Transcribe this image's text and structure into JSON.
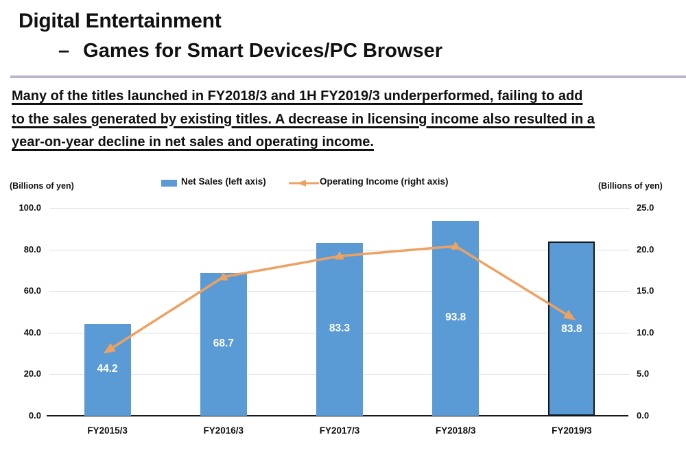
{
  "header": {
    "title_line1": "Digital Entertainment",
    "title_line2_dash": "–",
    "title_line2": "Games for Smart Devices/PC Browser"
  },
  "summary": {
    "lines": [
      "Many of the titles launched in FY2018/3 and 1H FY2019/3 underperformed, failing to add",
      "to the sales generated by existing titles. A decrease in licensing income also resulted in a",
      "year-on-year decline in net sales and operating income."
    ]
  },
  "chart_data": {
    "type": "combo-bar-line",
    "categories": [
      "FY2015/3",
      "FY2016/3",
      "FY2017/3",
      "FY2018/3",
      "FY2019/3"
    ],
    "series": [
      {
        "name": "Net Sales (left axis)",
        "type": "bar",
        "axis": "left",
        "color": "#5B9BD5",
        "values": [
          44.2,
          68.7,
          83.3,
          93.8,
          83.8
        ],
        "data_labels": [
          "44.2",
          "68.7",
          "83.3",
          "93.8",
          "83.8"
        ],
        "last_bar_outlined": true
      },
      {
        "name": "Operating Income (right axis)",
        "type": "line",
        "axis": "right",
        "color": "#EDA262",
        "values": [
          7.8,
          16.7,
          19.2,
          20.4,
          11.8
        ]
      }
    ],
    "left_axis": {
      "title": "(Billions of yen)",
      "min": 0,
      "max": 100,
      "ticks": [
        "100.0",
        "80.0",
        "60.0",
        "40.0",
        "20.0",
        "0.0"
      ]
    },
    "right_axis": {
      "title": "(Billions of yen)",
      "min": 0,
      "max": 25,
      "ticks": [
        "25.0",
        "20.0",
        "15.0",
        "10.0",
        "5.0",
        "0.0"
      ]
    },
    "grid": true,
    "legend_position": "top-center"
  },
  "colors": {
    "bar_blue": "#5B9BD5",
    "line_orange": "#EDA262",
    "separator_lavender": "#bdb6cb",
    "gridline_gray": "#dcdcdc",
    "outline_black": "#10161c"
  }
}
